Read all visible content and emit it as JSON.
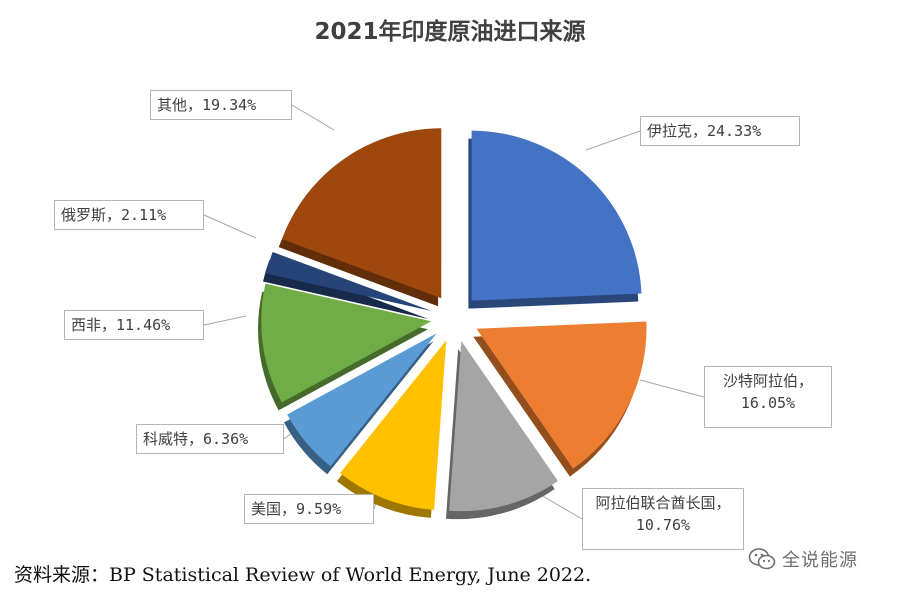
{
  "chart_data": {
    "type": "pie",
    "title": "2021年印度原油进口来源",
    "slices": [
      {
        "name": "伊拉克",
        "value": 24.33,
        "label": "伊拉克，24.33%",
        "color": "#4472C4"
      },
      {
        "name": "沙特阿拉伯",
        "value": 16.05,
        "label": "沙特阿拉伯，16.05%",
        "color": "#ED7D31"
      },
      {
        "name": "阿拉伯联合酋长国",
        "value": 10.76,
        "label": "阿拉伯联合酋长国，10.76%",
        "color": "#A5A5A5"
      },
      {
        "name": "美国",
        "value": 9.59,
        "label": "美国，9.59%",
        "color": "#FFC000"
      },
      {
        "name": "科威特",
        "value": 6.36,
        "label": "科威特，6.36%",
        "color": "#5B9BD5"
      },
      {
        "name": "西非",
        "value": 11.46,
        "label": "西非，11.46%",
        "color": "#70AD47"
      },
      {
        "name": "俄罗斯",
        "value": 2.11,
        "label": "俄罗斯，2.11%",
        "color": "#264478"
      },
      {
        "name": "其他",
        "value": 19.34,
        "label": "其他，19.34%",
        "color": "#9E480E"
      }
    ]
  },
  "source_note": "资料来源：BP Statistical Review of World Energy, June 2022.",
  "watermark": {
    "text": "全说能源",
    "icon": "wechat-icon"
  }
}
